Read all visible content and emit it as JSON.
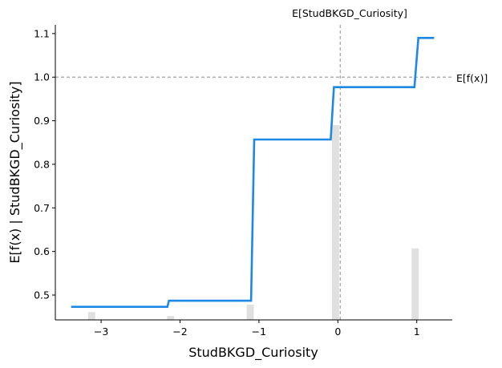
{
  "chart_data": {
    "type": "line",
    "title": "",
    "xlabel": "StudBKGD_Curiosity",
    "ylabel": "E[f(x) | StudBKGD_Curiosity]",
    "xlim": [
      -3.58,
      1.45
    ],
    "ylim": [
      0.443,
      1.12
    ],
    "x_ticks": [
      -3,
      -2,
      -1,
      0,
      1
    ],
    "x_tick_labels": [
      "−3",
      "−2",
      "−1",
      "0",
      "1"
    ],
    "y_ticks": [
      0.5,
      0.6,
      0.7,
      0.8,
      0.9,
      1.0,
      1.1
    ],
    "y_tick_labels": [
      "0.5",
      "0.6",
      "0.7",
      "0.8",
      "0.9",
      "1.0",
      "1.1"
    ],
    "series": [
      {
        "color": "#1e88e5",
        "x": [
          -3.38,
          -2.16,
          -2.14,
          -1.1,
          -1.06,
          -0.09,
          -0.05,
          0.97,
          1.02,
          1.22
        ],
        "y": [
          0.473,
          0.473,
          0.487,
          0.487,
          0.857,
          0.857,
          0.977,
          0.977,
          1.09,
          1.09
        ]
      }
    ],
    "histogram": {
      "color": "#e0e0e0",
      "bin_width": 0.09,
      "bars": [
        {
          "x": -3.12,
          "y": 0.461
        },
        {
          "x": -2.12,
          "y": 0.452
        },
        {
          "x": -1.11,
          "y": 0.478
        },
        {
          "x": -0.03,
          "y": 0.89
        },
        {
          "x": 0.98,
          "y": 0.607
        }
      ]
    },
    "reference_lines": {
      "expected_value": {
        "value": 1.0,
        "label": "E[f(x)]",
        "color": "#999999"
      },
      "feature_mean": {
        "value": 0.03,
        "label": "E[StudBKGD_Curiosity]",
        "color": "#999999"
      }
    },
    "grid": false,
    "legend": "none"
  }
}
